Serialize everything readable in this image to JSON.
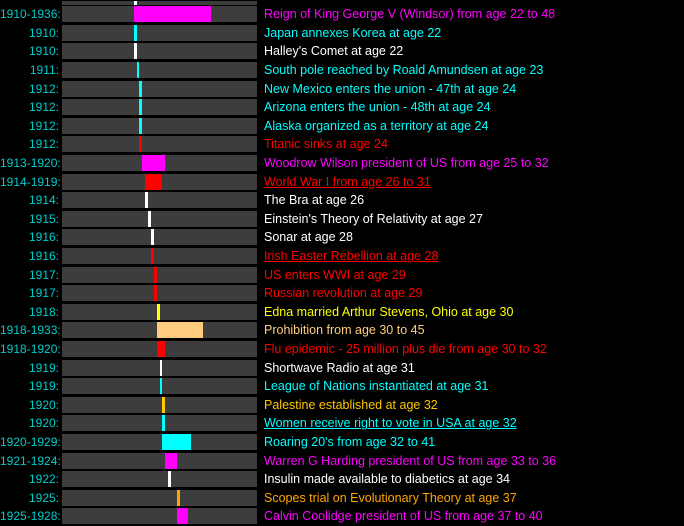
{
  "colors": {
    "background": "#000000",
    "track": "#3d3d3d",
    "year_label": "#00cccc",
    "magenta": "#ff00ff",
    "cyan": "#00ffff",
    "white": "#ffffff",
    "red": "#ff0000",
    "yellow": "#ffff00",
    "tan": "#ffcc80",
    "orange": "#ffa500",
    "gold": "#ffc800"
  },
  "chart_data": {
    "type": "bar",
    "subtype": "timeline-gantt",
    "orientation": "horizontal",
    "axis": {
      "start_year": 1885,
      "end_year": 1953
    },
    "legend": "none",
    "grid": "off",
    "events": [
      {
        "label": "",
        "start": 1910,
        "end": 1910,
        "color": "#ffffff",
        "text": "",
        "partial": true
      },
      {
        "label": "1910-1936:",
        "start": 1910,
        "end": 1936,
        "color": "#ff00ff",
        "text": "Reign of King George V (Windsor) from age 22 to 48"
      },
      {
        "label": "1910:",
        "start": 1910,
        "end": 1910,
        "color": "#00ffff",
        "text": "Japan annexes Korea at age 22"
      },
      {
        "label": "1910:",
        "start": 1910,
        "end": 1910,
        "color": "#ffffff",
        "text": "Halley's Comet at age 22"
      },
      {
        "label": "1911:",
        "start": 1911,
        "end": 1911,
        "color": "#00ffff",
        "text": "South pole reached by Roald Amundsen at age 23"
      },
      {
        "label": "1912:",
        "start": 1912,
        "end": 1912,
        "color": "#00ffff",
        "text": "New Mexico enters the union - 47th at age 24"
      },
      {
        "label": "1912:",
        "start": 1912,
        "end": 1912,
        "color": "#00ffff",
        "text": "Arizona enters the union - 48th at age 24"
      },
      {
        "label": "1912:",
        "start": 1912,
        "end": 1912,
        "color": "#00ffff",
        "text": "Alaska organized as a territory at age 24"
      },
      {
        "label": "1912:",
        "start": 1912,
        "end": 1912,
        "color": "#ff0000",
        "text": "Titanic sinks at age 24"
      },
      {
        "label": "1913-1920:",
        "start": 1913,
        "end": 1920,
        "color": "#ff00ff",
        "text": "Woodrow Wilson president of US from age 25 to 32"
      },
      {
        "label": "1914-1919:",
        "start": 1914,
        "end": 1919,
        "color": "#ff0000",
        "text": "World War I from age 26 to 31",
        "underline": true
      },
      {
        "label": "1914:",
        "start": 1914,
        "end": 1914,
        "color": "#ffffff",
        "text": "The Bra at age 26"
      },
      {
        "label": "1915:",
        "start": 1915,
        "end": 1915,
        "color": "#ffffff",
        "text": "Einstein's Theory of Relativity at age 27"
      },
      {
        "label": "1916:",
        "start": 1916,
        "end": 1916,
        "color": "#ffffff",
        "text": "Sonar at age 28"
      },
      {
        "label": "1916:",
        "start": 1916,
        "end": 1916,
        "color": "#ff0000",
        "text": "Irish Easter Rebellion at age 28",
        "underline": true
      },
      {
        "label": "1917:",
        "start": 1917,
        "end": 1917,
        "color": "#ff0000",
        "text": "US enters WWI at age 29"
      },
      {
        "label": "1917:",
        "start": 1917,
        "end": 1917,
        "color": "#ff0000",
        "text": "Russian revolution at age 29"
      },
      {
        "label": "1918:",
        "start": 1918,
        "end": 1918,
        "color": "#ffff00",
        "text": "Edna married Arthur Stevens, Ohio at age 30"
      },
      {
        "label": "1918-1933:",
        "start": 1918,
        "end": 1933,
        "color": "#ffcc80",
        "text": "Prohibition from age 30 to 45"
      },
      {
        "label": "1918-1920:",
        "start": 1918,
        "end": 1920,
        "color": "#ff0000",
        "text": "Flu epidemic - 25 million plus die from age 30 to 32"
      },
      {
        "label": "1919:",
        "start": 1919,
        "end": 1919,
        "color": "#ffffff",
        "text": "Shortwave Radio at age 31"
      },
      {
        "label": "1919:",
        "start": 1919,
        "end": 1919,
        "color": "#00ffff",
        "text": "League of Nations instantiated at age 31"
      },
      {
        "label": "1920:",
        "start": 1920,
        "end": 1920,
        "color": "#ffc800",
        "text": "Palestine established at age 32"
      },
      {
        "label": "1920:",
        "start": 1920,
        "end": 1920,
        "color": "#00ffff",
        "text": "Women receive right to vote in USA at age 32",
        "underline": true
      },
      {
        "label": "1920-1929:",
        "start": 1920,
        "end": 1929,
        "color": "#00ffff",
        "text": "Roaring 20's from age 32 to 41"
      },
      {
        "label": "1921-1924:",
        "start": 1921,
        "end": 1924,
        "color": "#ff00ff",
        "text": "Warren G Harding president of US from age 33 to 36"
      },
      {
        "label": "1922:",
        "start": 1922,
        "end": 1922,
        "color": "#ffffff",
        "text": "Insulin made available to diabetics at age 34"
      },
      {
        "label": "1925:",
        "start": 1925,
        "end": 1925,
        "color": "#ffa500",
        "text": "Scopes trial on Evolutionary Theory at age 37"
      },
      {
        "label": "1925-1928:",
        "start": 1925,
        "end": 1928,
        "color": "#ff00ff",
        "text": "Calvin Coolidge president of US from age 37 to 40"
      }
    ]
  }
}
